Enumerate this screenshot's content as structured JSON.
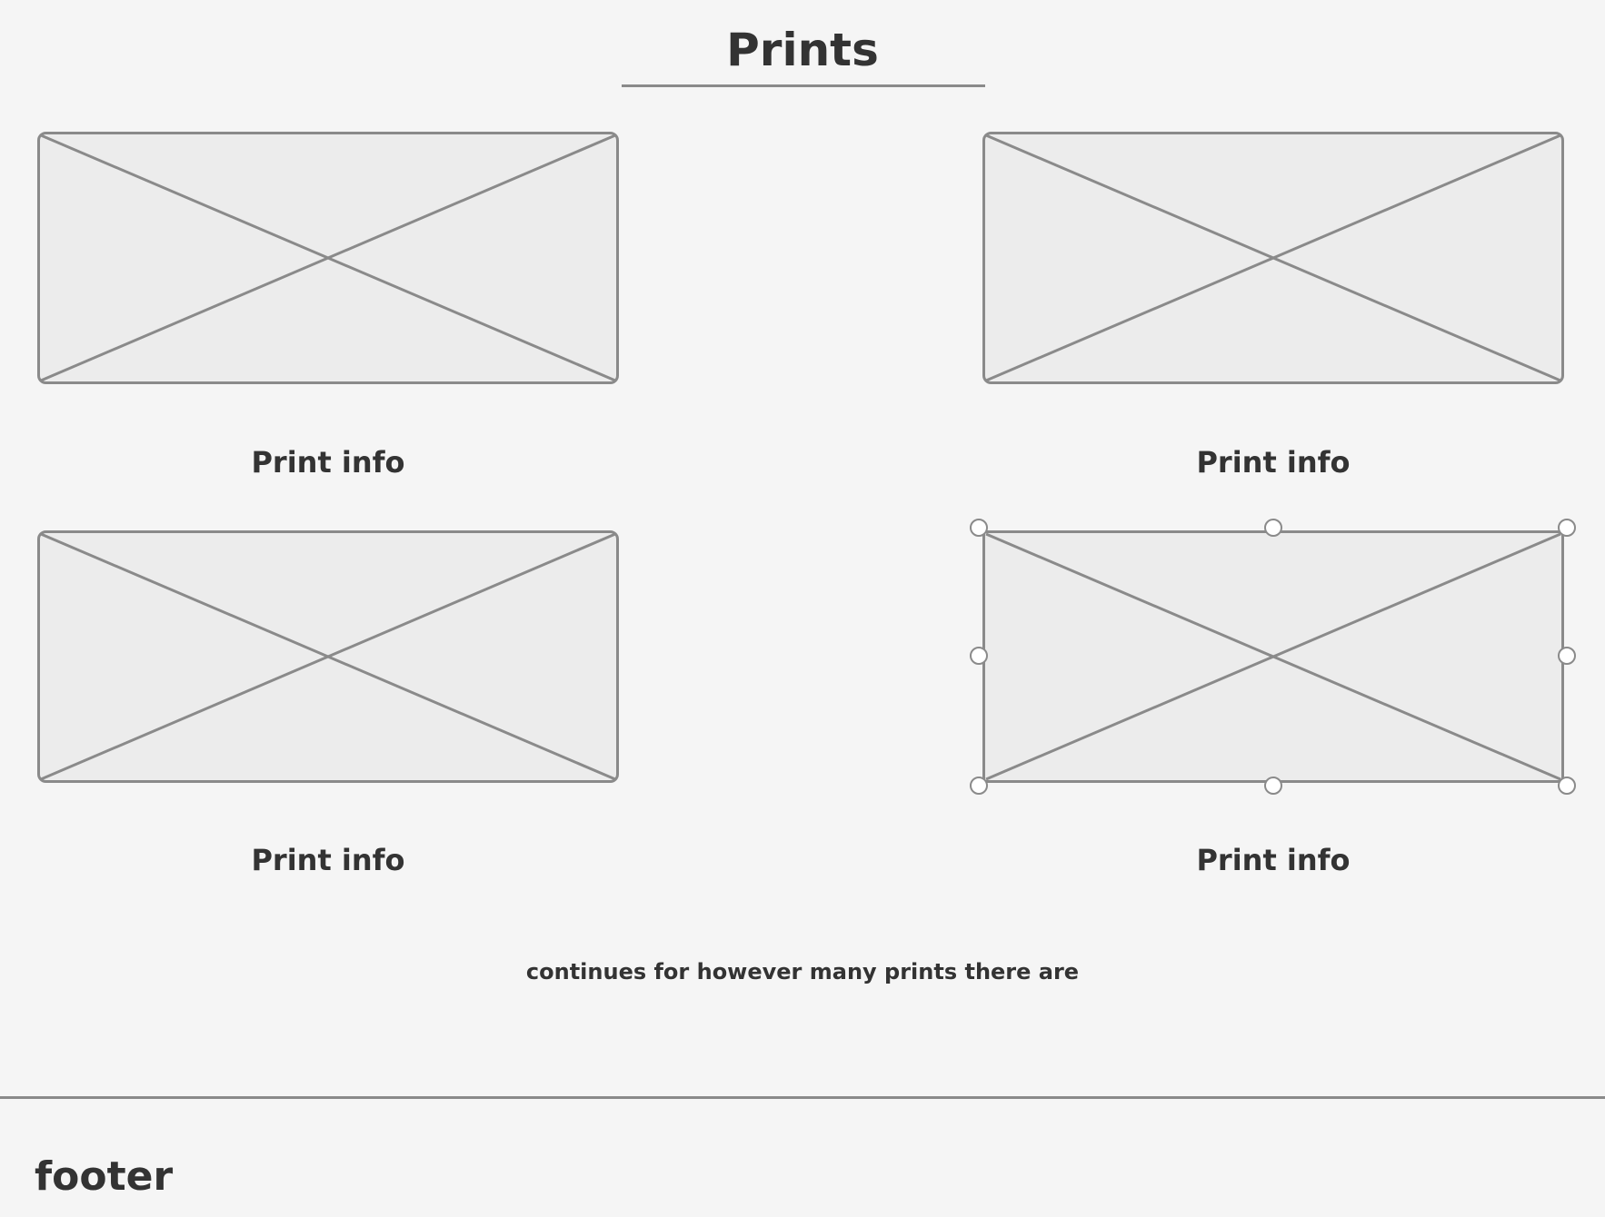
{
  "header": {
    "title": "Prints"
  },
  "prints": [
    {
      "caption": "Print info"
    },
    {
      "caption": "Print info"
    },
    {
      "caption": "Print info"
    },
    {
      "caption": "Print info"
    }
  ],
  "note": "continues for however many prints there are",
  "footer": {
    "label": "footer"
  },
  "colors": {
    "background": "#f5f5f5",
    "placeholder_fill": "#ececec",
    "placeholder_stroke": "#8a8a8a",
    "text": "#333333"
  }
}
